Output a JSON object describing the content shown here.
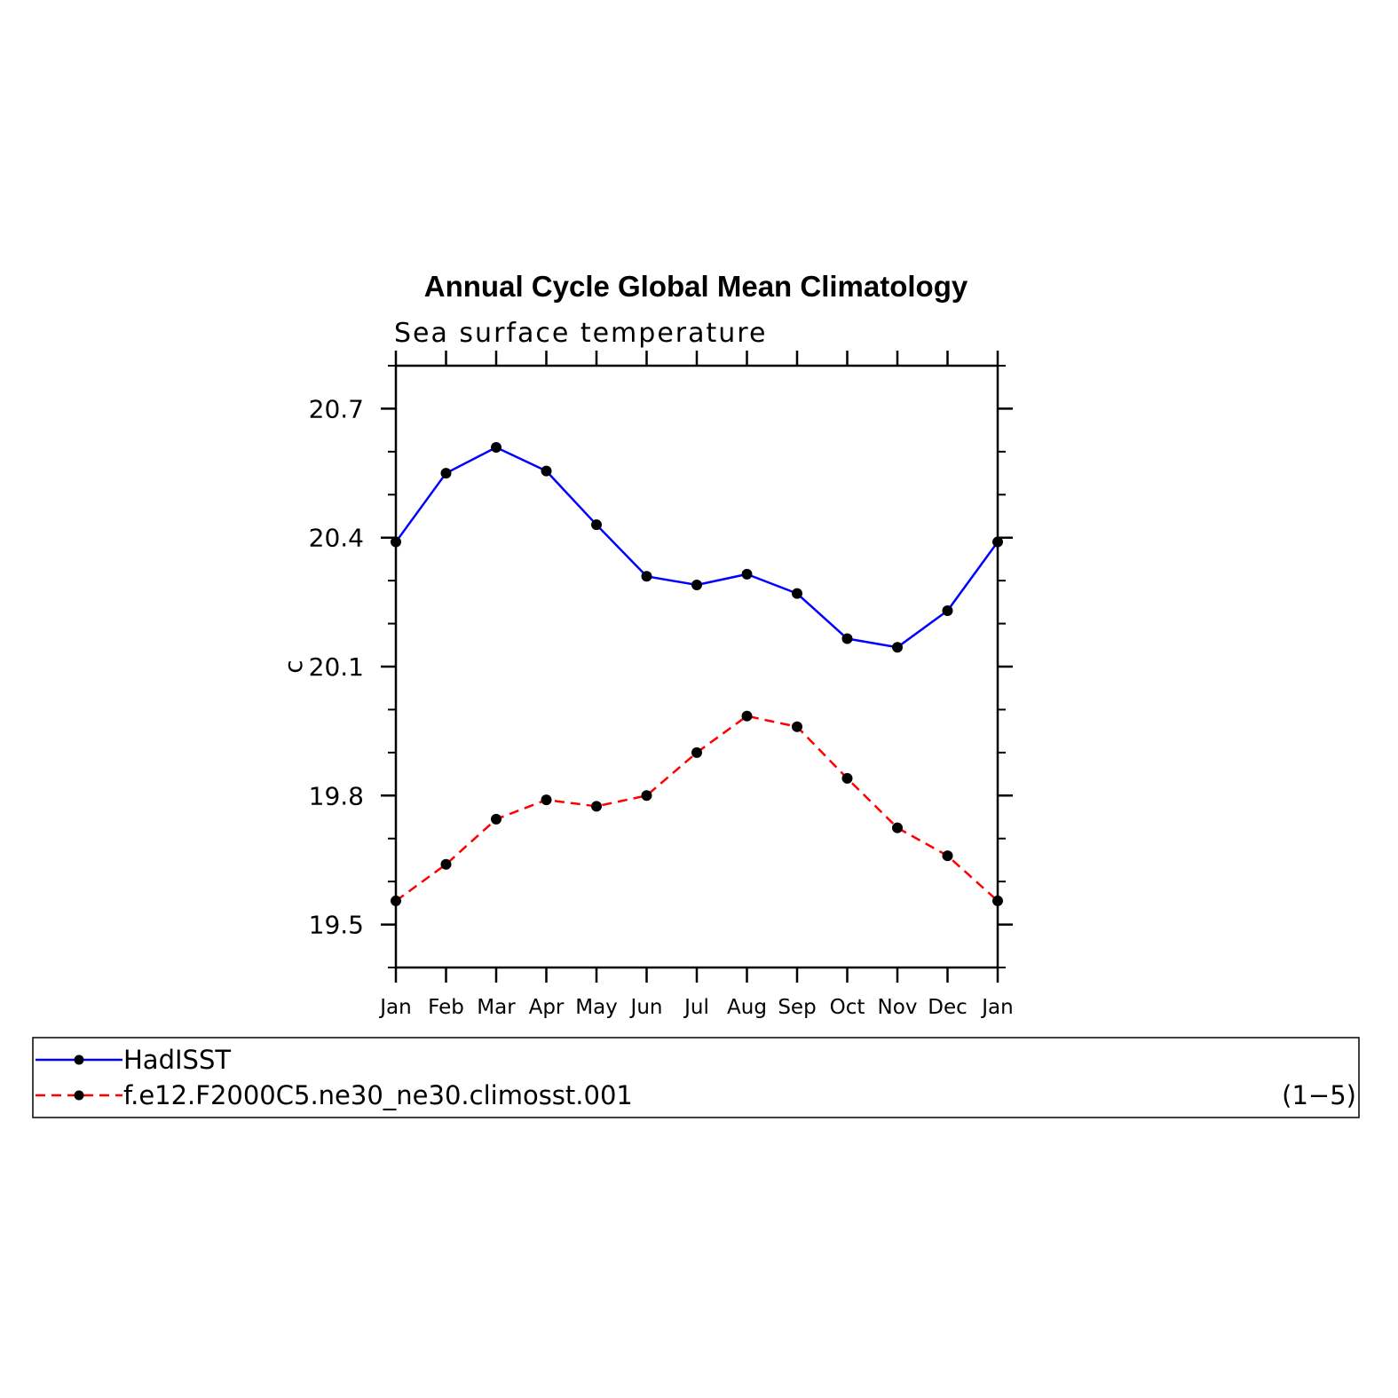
{
  "chart_data": {
    "type": "line",
    "title": "Annual Cycle Global Mean Climatology",
    "subtitle": "Sea surface temperature",
    "xlabel": "",
    "ylabel": "c",
    "categories": [
      "Jan",
      "Feb",
      "Mar",
      "Apr",
      "May",
      "Jun",
      "Jul",
      "Aug",
      "Sep",
      "Oct",
      "Nov",
      "Dec",
      "Jan"
    ],
    "ylim": [
      19.4,
      20.8
    ],
    "yticks": [
      "19.5",
      "19.8",
      "20.1",
      "20.4",
      "20.7"
    ],
    "grid": false,
    "legend_position": "bottom",
    "series": [
      {
        "name": "HadISST",
        "color": "#0000ff",
        "line_style": "solid",
        "marker": "filled-circle",
        "values": [
          20.39,
          20.55,
          20.61,
          20.555,
          20.43,
          20.31,
          20.29,
          20.315,
          20.27,
          20.165,
          20.145,
          20.23,
          20.39
        ]
      },
      {
        "name": "f.e12.F2000C5.ne30_ne30.climosst.001",
        "annotation": "(1−5)",
        "color": "#ff0000",
        "line_style": "dashed",
        "marker": "filled-circle",
        "values": [
          19.555,
          19.64,
          19.745,
          19.79,
          19.775,
          19.8,
          19.9,
          19.985,
          19.96,
          19.84,
          19.725,
          19.66,
          19.555
        ]
      }
    ]
  }
}
